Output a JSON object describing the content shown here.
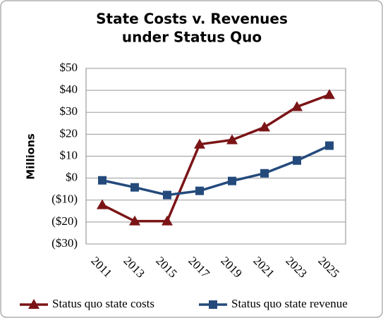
{
  "chart_data": {
    "type": "line",
    "title": [
      "State Costs v. Revenues",
      "under Status Quo"
    ],
    "y_axis_label": "Millions",
    "categories": [
      "2011",
      "2013",
      "2015",
      "2017",
      "2019",
      "2021",
      "2023",
      "2025"
    ],
    "series": [
      {
        "name": "Status quo state costs",
        "color": "#7b1416",
        "marker": "triangle",
        "values": [
          -12.2,
          -19.6,
          -19.6,
          15.4,
          17.4,
          23.2,
          32.5,
          38
        ]
      },
      {
        "name": "Status quo state revenue",
        "color": "#244a7c",
        "marker": "square",
        "values": [
          -1,
          -4.2,
          -7.7,
          -5.8,
          -1.3,
          2.2,
          8,
          14.8
        ]
      }
    ],
    "ylim": [
      -30,
      50
    ],
    "yticks": [
      {
        "value": -30,
        "label": "($30)"
      },
      {
        "value": -20,
        "label": "($20)"
      },
      {
        "value": -10,
        "label": "($10)"
      },
      {
        "value": 0,
        "label": "$0"
      },
      {
        "value": 10,
        "label": "$10"
      },
      {
        "value": 20,
        "label": "$20"
      },
      {
        "value": 30,
        "label": "$30"
      },
      {
        "value": 40,
        "label": "$40"
      },
      {
        "value": 50,
        "label": "$50"
      }
    ],
    "grid": true,
    "legend": "bottom"
  }
}
